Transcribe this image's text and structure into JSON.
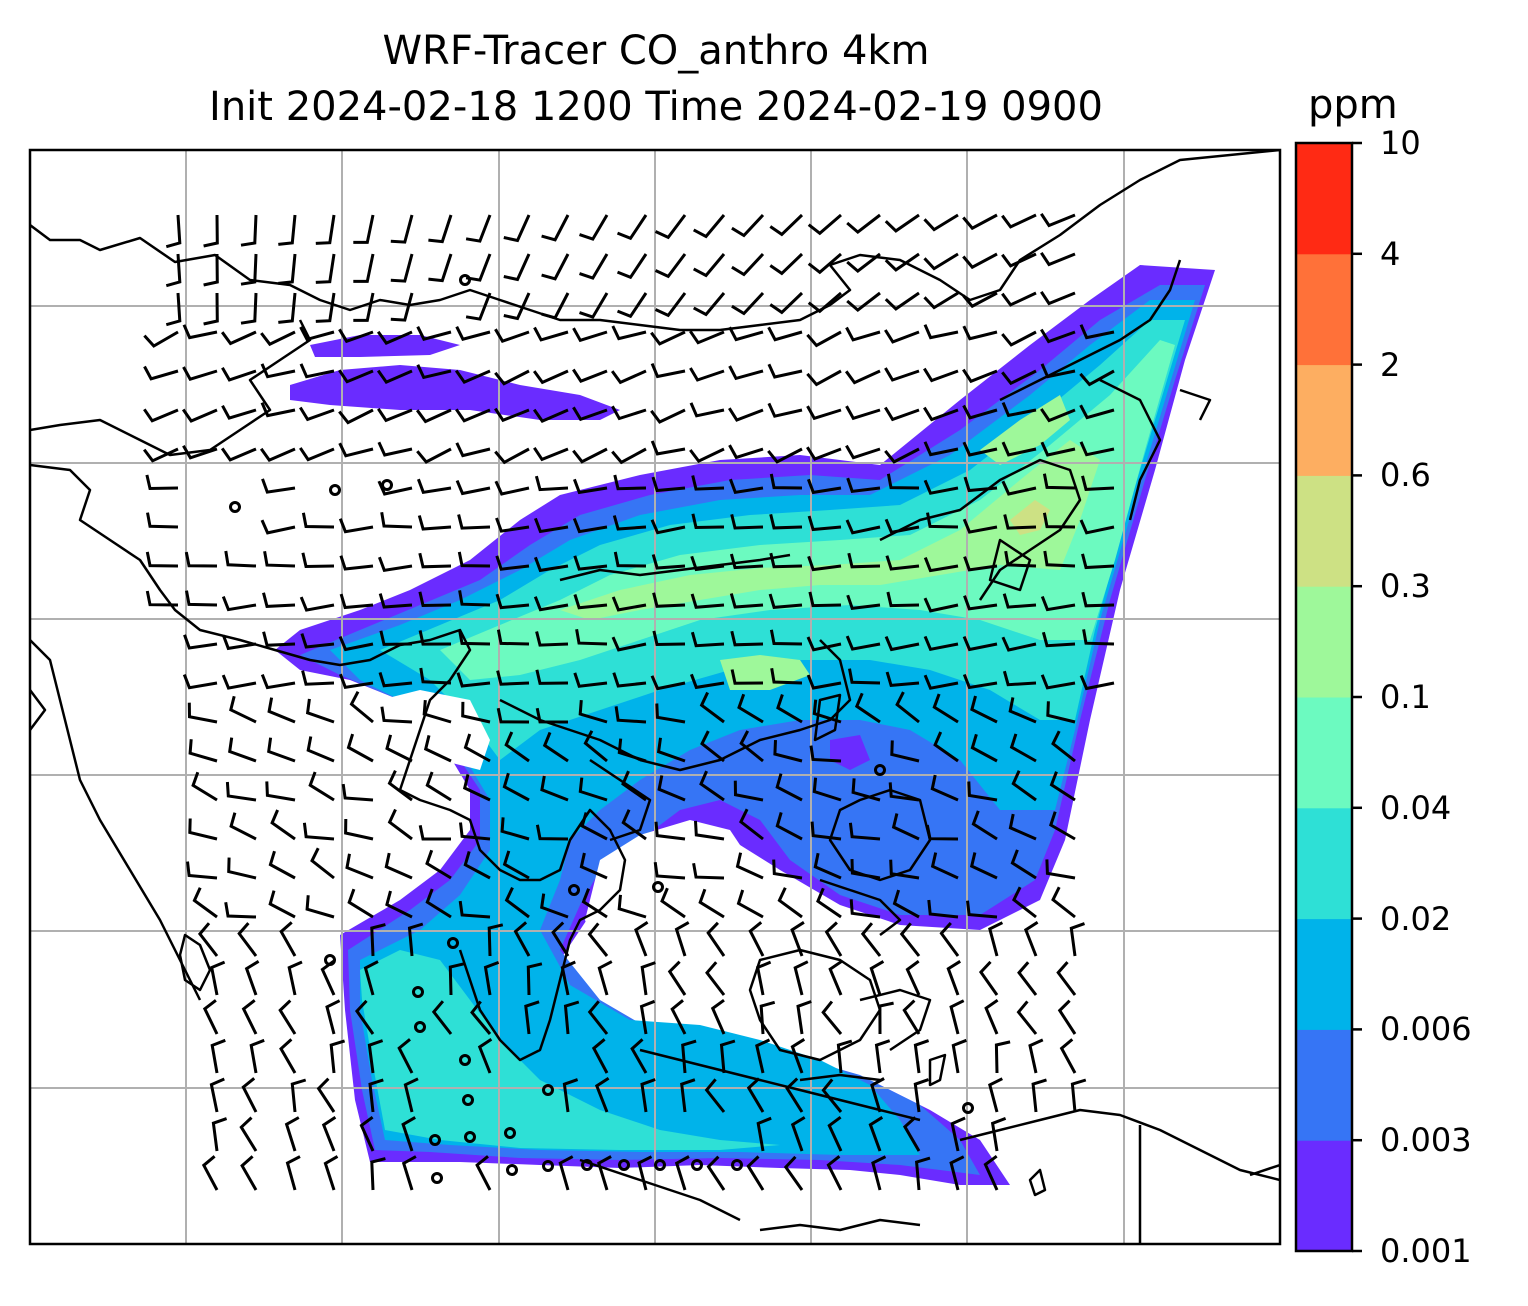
{
  "title_line1": "WRF-Tracer CO_anthro 4km",
  "title_line2": "Init 2024-02-18 1200 Time 2024-02-19 0900",
  "colorbar": {
    "unit": "ppm",
    "levels": [
      "0.001",
      "0.003",
      "0.006",
      "0.02",
      "0.04",
      "0.1",
      "0.3",
      "0.6",
      "2",
      "4",
      "10"
    ],
    "colors": [
      "#6a2cff",
      "#3675f5",
      "#00b3ea",
      "#2ee0d6",
      "#6cfac0",
      "#9ef89a",
      "#cde184",
      "#fdae61",
      "#ff7139",
      "#ff2a14"
    ]
  },
  "map": {
    "ocean_color": "#ffffff",
    "coast_color": "#000000",
    "grid_color": "#b0b0b0",
    "barb_color": "#000000"
  }
}
